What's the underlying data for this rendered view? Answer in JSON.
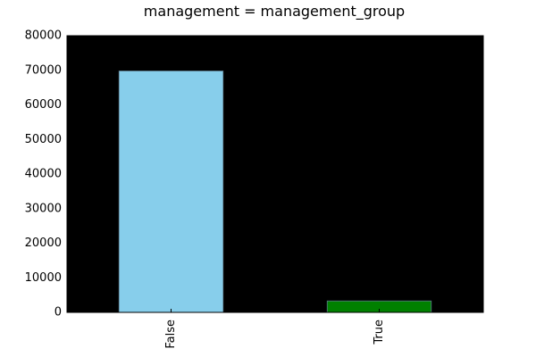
{
  "chart_data": {
    "type": "bar",
    "title": "management = management_group",
    "xlabel": "",
    "ylabel": "",
    "categories": [
      "False",
      "True"
    ],
    "values": [
      69800,
      3300
    ],
    "bar_colors": [
      "#87ceeb",
      "#008000"
    ],
    "plot_background": "#000000",
    "ylim": [
      0,
      80000
    ],
    "yticks": [
      "0",
      "10000",
      "20000",
      "30000",
      "40000",
      "50000",
      "60000",
      "70000",
      "80000"
    ],
    "grid": false,
    "legend": "none"
  }
}
